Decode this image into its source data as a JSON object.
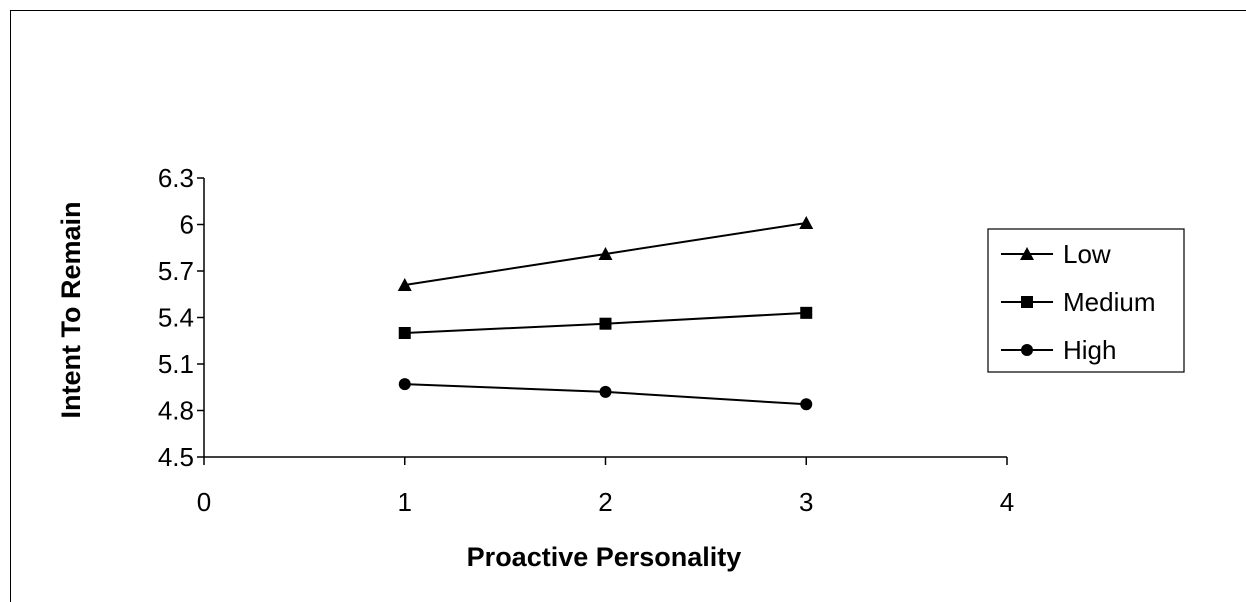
{
  "chart_data": {
    "type": "line",
    "title": "",
    "xlabel": "Proactive Personality",
    "ylabel": "Intent To Remain",
    "xlim": [
      0,
      4
    ],
    "ylim": [
      4.5,
      6.3
    ],
    "x_ticks": [
      "0",
      "1",
      "2",
      "3",
      "4"
    ],
    "y_ticks": [
      "4.5",
      "4.8",
      "5.1",
      "5.4",
      "5.7",
      "6",
      "6.3"
    ],
    "x": [
      1,
      2,
      3
    ],
    "series": [
      {
        "name": "Low",
        "marker": "triangle",
        "values": [
          5.61,
          5.81,
          6.01
        ]
      },
      {
        "name": "Medium",
        "marker": "square",
        "values": [
          5.3,
          5.36,
          5.43
        ]
      },
      {
        "name": "High",
        "marker": "circle",
        "values": [
          4.97,
          4.92,
          4.84
        ]
      }
    ],
    "grid": false,
    "legend_position": "right",
    "line_color": "#000000"
  }
}
